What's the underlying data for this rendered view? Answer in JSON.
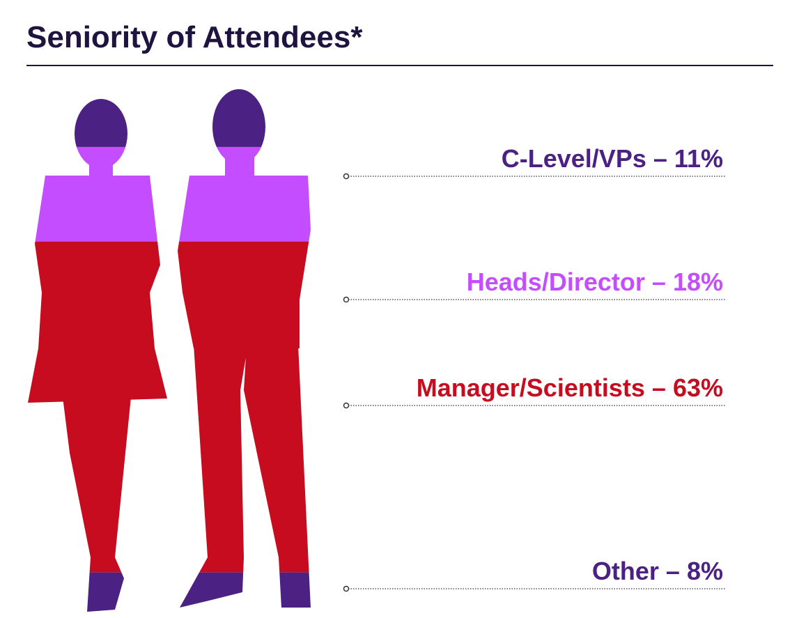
{
  "chart_data": {
    "type": "pictograph",
    "title": "Seniority of Attendees*",
    "label_separator": "–",
    "categories": [
      "C-Level/VPs",
      "Heads/Director",
      "Manager/Scientists",
      "Other"
    ],
    "values": [
      11,
      18,
      63,
      8
    ],
    "value_labels": [
      "11%",
      "18%",
      "63%",
      "8%"
    ],
    "colors": [
      "#4b2184",
      "#c44dff",
      "#c60c1e",
      "#4b2184"
    ]
  }
}
